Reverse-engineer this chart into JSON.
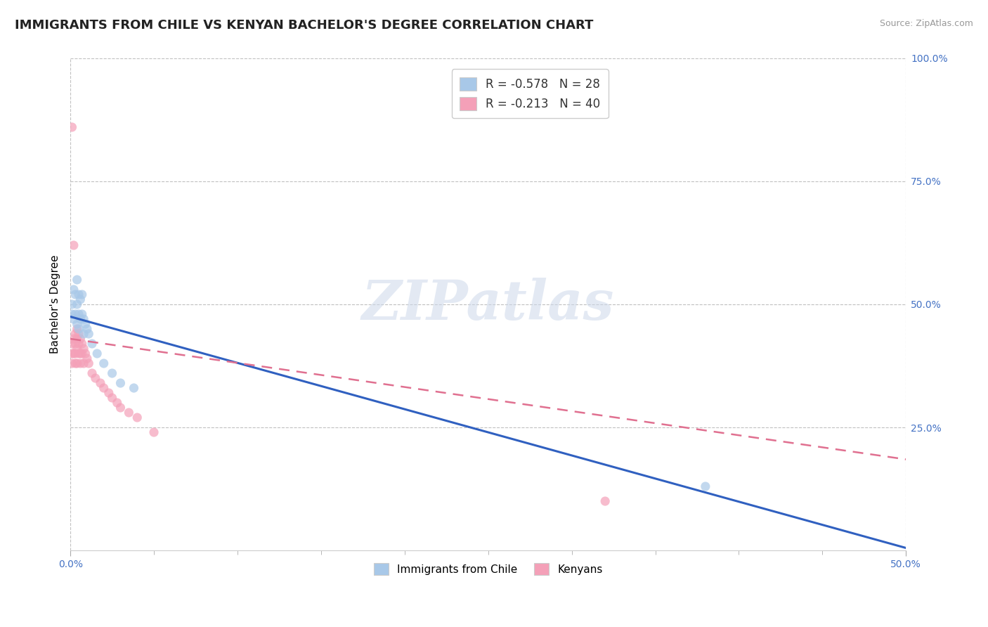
{
  "title": "IMMIGRANTS FROM CHILE VS KENYAN BACHELOR'S DEGREE CORRELATION CHART",
  "source": "Source: ZipAtlas.com",
  "ylabel": "Bachelor's Degree",
  "xlim": [
    0.0,
    0.5
  ],
  "ylim": [
    0.0,
    1.0
  ],
  "ytick_positions": [
    0.25,
    0.5,
    0.75,
    1.0
  ],
  "ytick_labels": [
    "25.0%",
    "50.0%",
    "75.0%",
    "100.0%"
  ],
  "legend1_label": "R = -0.578   N = 28",
  "legend2_label": "R = -0.213   N = 40",
  "watermark": "ZIPatlas",
  "blue_color": "#a8c8e8",
  "pink_color": "#f4a0b8",
  "blue_line_color": "#3060c0",
  "pink_line_color": "#e07090",
  "chile_scatter_x": [
    0.001,
    0.001,
    0.002,
    0.002,
    0.003,
    0.003,
    0.004,
    0.004,
    0.004,
    0.005,
    0.005,
    0.005,
    0.006,
    0.006,
    0.007,
    0.007,
    0.008,
    0.008,
    0.009,
    0.01,
    0.011,
    0.013,
    0.016,
    0.02,
    0.025,
    0.03,
    0.038,
    0.38
  ],
  "chile_scatter_y": [
    0.5,
    0.48,
    0.53,
    0.47,
    0.52,
    0.48,
    0.55,
    0.5,
    0.46,
    0.52,
    0.48,
    0.45,
    0.51,
    0.47,
    0.52,
    0.48,
    0.47,
    0.44,
    0.46,
    0.45,
    0.44,
    0.42,
    0.4,
    0.38,
    0.36,
    0.34,
    0.33,
    0.13
  ],
  "kenya_scatter_x": [
    0.001,
    0.001,
    0.001,
    0.001,
    0.002,
    0.002,
    0.002,
    0.003,
    0.003,
    0.003,
    0.003,
    0.004,
    0.004,
    0.004,
    0.004,
    0.005,
    0.005,
    0.005,
    0.006,
    0.006,
    0.006,
    0.007,
    0.007,
    0.008,
    0.008,
    0.009,
    0.01,
    0.011,
    0.013,
    0.015,
    0.018,
    0.02,
    0.023,
    0.025,
    0.028,
    0.03,
    0.035,
    0.04,
    0.05,
    0.32
  ],
  "kenya_scatter_y": [
    0.86,
    0.42,
    0.4,
    0.38,
    0.62,
    0.43,
    0.4,
    0.44,
    0.42,
    0.4,
    0.38,
    0.45,
    0.43,
    0.41,
    0.38,
    0.44,
    0.42,
    0.4,
    0.43,
    0.4,
    0.38,
    0.42,
    0.4,
    0.41,
    0.38,
    0.4,
    0.39,
    0.38,
    0.36,
    0.35,
    0.34,
    0.33,
    0.32,
    0.31,
    0.3,
    0.29,
    0.28,
    0.27,
    0.24,
    0.1
  ],
  "chile_line_x0": 0.0,
  "chile_line_y0": 0.475,
  "chile_line_x1": 0.5,
  "chile_line_y1": 0.005,
  "kenya_line_x0": 0.0,
  "kenya_line_y0": 0.43,
  "kenya_line_x1": 0.5,
  "kenya_line_y1": 0.185,
  "title_fontsize": 13,
  "axis_label_fontsize": 11,
  "tick_fontsize": 10,
  "legend_fontsize": 12
}
